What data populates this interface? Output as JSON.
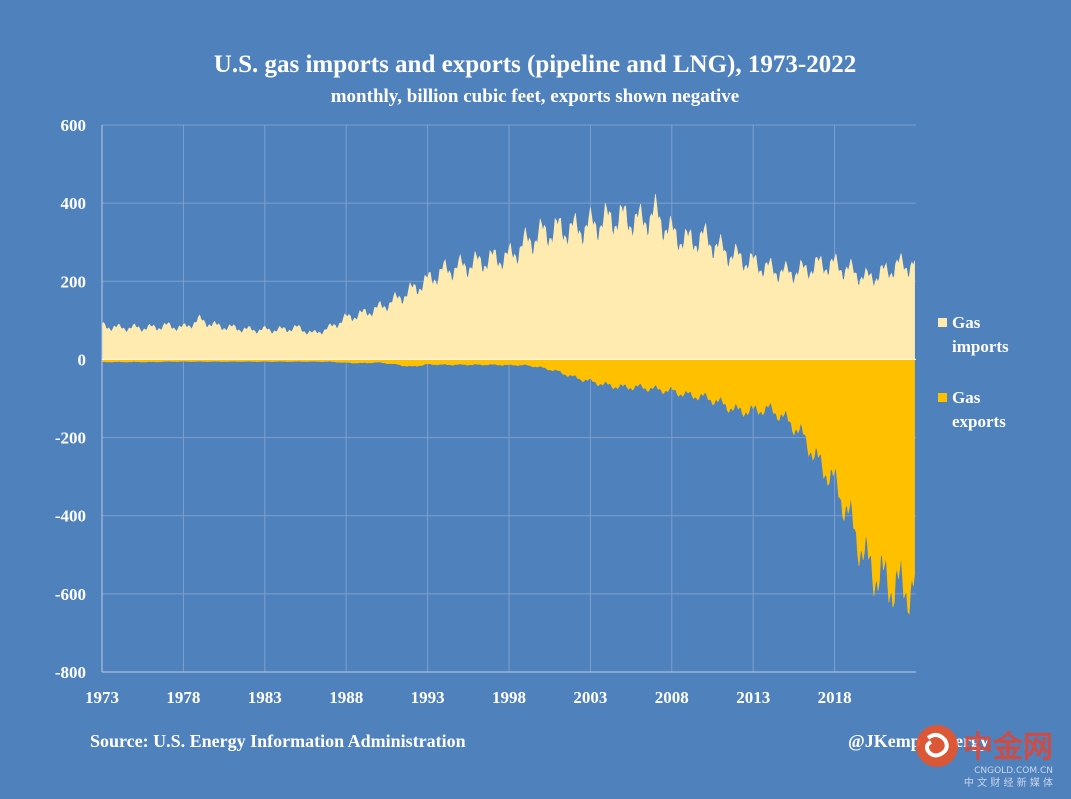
{
  "chart_data": {
    "type": "area",
    "title": "U.S. gas imports and exports (pipeline and LNG), 1973-2022",
    "subtitle": "monthly, billion cubic feet, exports shown negative",
    "ylim": [
      -800,
      600
    ],
    "xlim": [
      1973,
      2023
    ],
    "y_ticks": [
      "600",
      "400",
      "200",
      "0",
      "-200",
      "-400",
      "-600",
      "-800"
    ],
    "x_ticks": [
      "1973",
      "1978",
      "1983",
      "1988",
      "1993",
      "1998",
      "2003",
      "2008",
      "2013",
      "2018"
    ],
    "grid": true,
    "legend_position": "right",
    "series": [
      {
        "name": "Gas imports",
        "color": "#FFEBB0",
        "x": [
          1973,
          1974,
          1975,
          1976,
          1977,
          1978,
          1979,
          1980,
          1981,
          1982,
          1983,
          1984,
          1985,
          1986,
          1987,
          1988,
          1989,
          1990,
          1991,
          1992,
          1993,
          1994,
          1995,
          1996,
          1997,
          1998,
          1999,
          2000,
          2001,
          2002,
          2003,
          2004,
          2005,
          2006,
          2007,
          2008,
          2009,
          2010,
          2011,
          2012,
          2013,
          2014,
          2015,
          2016,
          2017,
          2018,
          2019,
          2020,
          2021,
          2022
        ],
        "values": [
          85,
          80,
          80,
          80,
          85,
          80,
          100,
          85,
          80,
          75,
          75,
          75,
          80,
          65,
          80,
          105,
          115,
          130,
          150,
          175,
          200,
          225,
          235,
          245,
          255,
          260,
          295,
          320,
          330,
          330,
          340,
          355,
          360,
          350,
          370,
          320,
          300,
          310,
          280,
          260,
          245,
          230,
          220,
          225,
          240,
          240,
          225,
          205,
          220,
          240
        ]
      },
      {
        "name": "Gas exports",
        "color": "#FFC000",
        "x": [
          1973,
          1974,
          1975,
          1976,
          1977,
          1978,
          1979,
          1980,
          1981,
          1982,
          1983,
          1984,
          1985,
          1986,
          1987,
          1988,
          1989,
          1990,
          1991,
          1992,
          1993,
          1994,
          1995,
          1996,
          1997,
          1998,
          1999,
          2000,
          2001,
          2002,
          2003,
          2004,
          2005,
          2006,
          2007,
          2008,
          2009,
          2010,
          2011,
          2012,
          2013,
          2014,
          2015,
          2016,
          2017,
          2018,
          2019,
          2020,
          2021,
          2022
        ],
        "values": [
          -6,
          -6,
          -6,
          -6,
          -5,
          -5,
          -5,
          -5,
          -5,
          -5,
          -5,
          -5,
          -5,
          -5,
          -5,
          -8,
          -9,
          -7,
          -12,
          -18,
          -12,
          -13,
          -13,
          -13,
          -13,
          -14,
          -14,
          -20,
          -30,
          -45,
          -55,
          -65,
          -70,
          -70,
          -75,
          -80,
          -90,
          -95,
          -110,
          -130,
          -130,
          -125,
          -150,
          -190,
          -260,
          -310,
          -410,
          -520,
          -560,
          -580
        ]
      }
    ]
  },
  "source": "Source: U.S. Energy Information Administration",
  "handle": "@JKemp",
  "handle_tail": "ergy",
  "watermark": {
    "logo_text": "中金网",
    "url_text": "CNGOLD.COM.CN",
    "tagline": "中 文 财 经 新 媒 体"
  },
  "colors": {
    "background": "#4F81BD",
    "imports": "#FFEBB0",
    "exports": "#FFC000",
    "grid": "#7E9FCC",
    "text": "#FFFFFF"
  }
}
